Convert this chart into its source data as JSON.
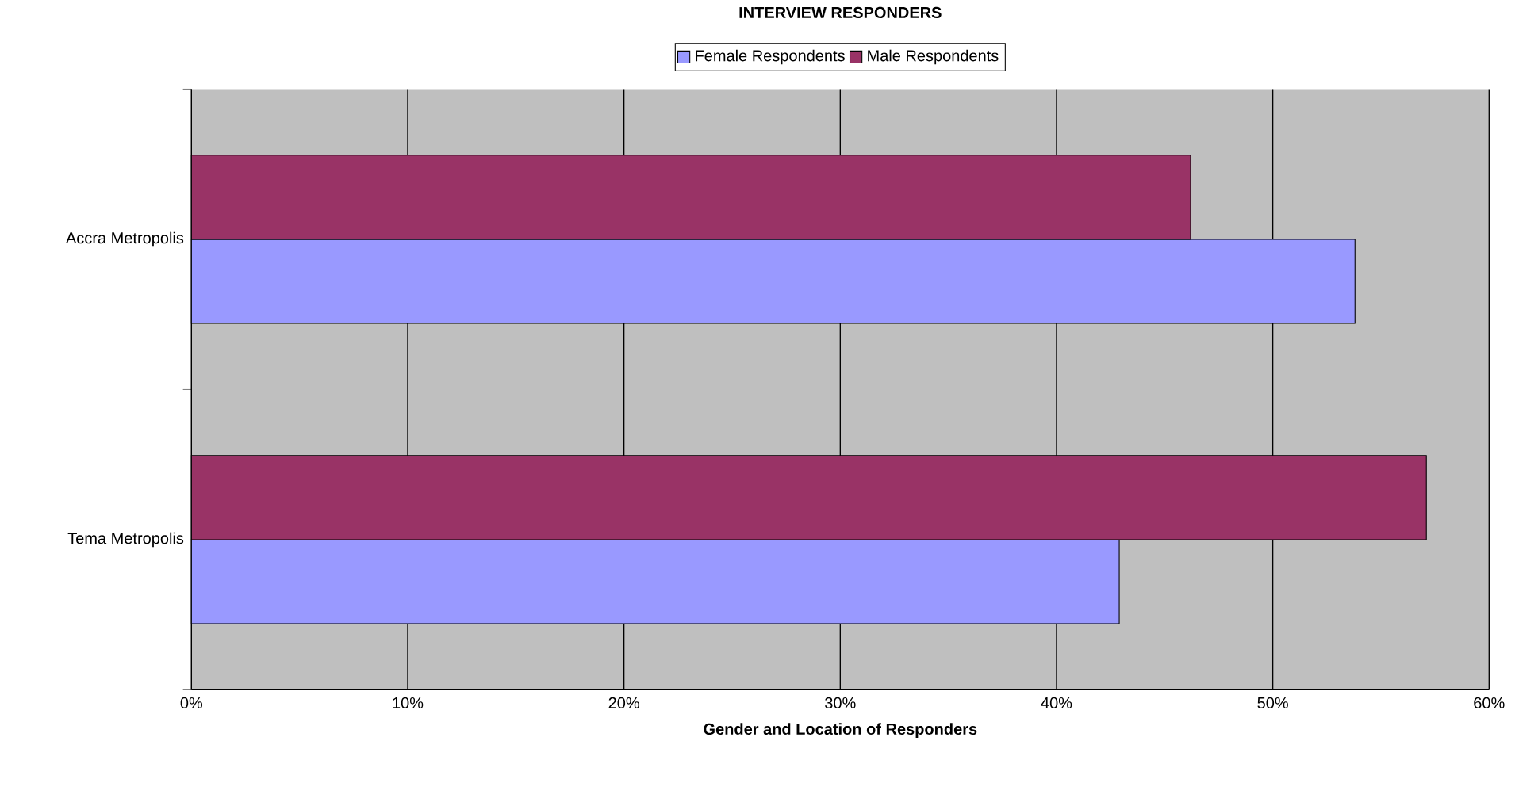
{
  "chart_data": {
    "type": "bar",
    "orientation": "horizontal",
    "title": "INTERVIEW RESPONDERS",
    "xlabel": "Gender and Location of Responders",
    "categories": [
      "Accra Metropolis",
      "Tema Metropolis"
    ],
    "series": [
      {
        "name": "Female Respondents",
        "color": "#9999ff",
        "values": [
          53.8,
          42.9
        ]
      },
      {
        "name": "Male Respondents",
        "color": "#993366",
        "values": [
          46.2,
          57.1
        ]
      }
    ],
    "xlim": [
      0,
      60
    ],
    "xticks": [
      {
        "value": 0,
        "label": "0%"
      },
      {
        "value": 10,
        "label": "10%"
      },
      {
        "value": 20,
        "label": "20%"
      },
      {
        "value": 30,
        "label": "30%"
      },
      {
        "value": 40,
        "label": "40%"
      },
      {
        "value": 50,
        "label": "50%"
      },
      {
        "value": 60,
        "label": "60%"
      }
    ],
    "grid": "x",
    "legend": "top"
  }
}
